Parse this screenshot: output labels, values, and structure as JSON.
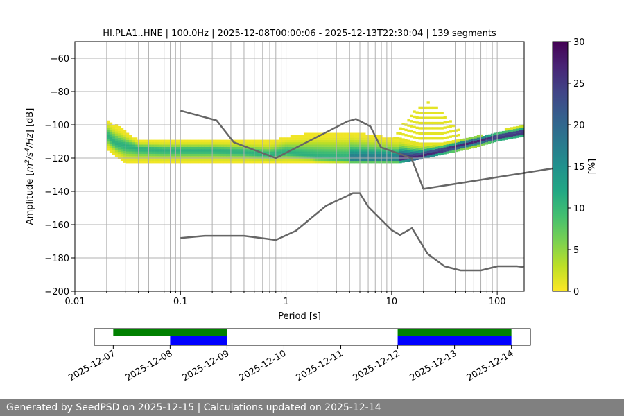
{
  "chart_data": [
    {
      "type": "heatmap",
      "title": "HI.PLA1..HNE | 100.0Hz | 2025-12-08T00:00:06 - 2025-12-13T22:30:04 | 139 segments",
      "xlabel": "Period [s]",
      "ylabel": "Amplitude [$m^2/s^4/Hz$] [dB]",
      "xscale": "log",
      "xlim": [
        0.01,
        180
      ],
      "ylim": [
        -200,
        -50
      ],
      "xticks": [
        0.01,
        0.1,
        1,
        10,
        100
      ],
      "xticklabels": [
        "0.01",
        "0.1",
        "1",
        "10",
        "100"
      ],
      "yticks": [
        -200,
        -180,
        -160,
        -140,
        -120,
        -100,
        -80,
        -60
      ],
      "yticklabels": [
        "−200",
        "−180",
        "−160",
        "−140",
        "−120",
        "−100",
        "−80",
        "−60"
      ],
      "grid": true,
      "colorbar": {
        "label": "[%]",
        "range": [
          0,
          30
        ],
        "ticks": [
          0,
          5,
          10,
          15,
          20,
          25,
          30
        ],
        "colormap": "viridis_r"
      },
      "noise_models": [
        {
          "name": "high",
          "color": "#666666",
          "x": [
            0.1,
            0.22,
            0.32,
            0.8,
            3.8,
            4.6,
            6.3,
            7.9,
            15.4,
            20,
            354.8
          ],
          "y": [
            -91.5,
            -97.4,
            -110.5,
            -120,
            -98,
            -96.5,
            -101,
            -113.5,
            -120,
            -138.5,
            -126
          ]
        },
        {
          "name": "low",
          "color": "#666666",
          "x": [
            0.1,
            0.17,
            0.4,
            0.8,
            1.24,
            2.4,
            4.3,
            5.0,
            6.0,
            10.0,
            12.0,
            15.6,
            21.9,
            31.6,
            45,
            70,
            101,
            154,
            178
          ],
          "y": [
            -168,
            -166.7,
            -166.7,
            -169.2,
            -163.7,
            -148.6,
            -141.1,
            -141.1,
            -149.2,
            -163.3,
            -166.2,
            -162.1,
            -177.5,
            -185,
            -187.5,
            -187.5,
            -185,
            -185,
            -185.5
          ]
        }
      ],
      "psd_bands": [
        {
          "name": "core",
          "x": [
            0.02,
            0.025,
            0.04,
            0.07,
            0.1,
            0.2,
            0.4,
            0.7,
            1.0,
            2.0,
            4.0,
            7.0,
            12.0,
            18.0,
            30.0,
            60.0,
            100.0,
            180.0
          ],
          "y": [
            -107,
            -112,
            -115,
            -116,
            -116,
            -116,
            -117,
            -119,
            -117,
            -120,
            -121,
            -121,
            -121,
            -120,
            -116,
            -111,
            -108,
            -105
          ]
        },
        {
          "name": "upper",
          "x": [
            0.02,
            0.04,
            0.1,
            0.3,
            0.7,
            1.0,
            2.0,
            4.0,
            7.0,
            12.0,
            18.0,
            30.0,
            60.0,
            100.0,
            180.0
          ],
          "y": [
            -97,
            -110,
            -110,
            -110,
            -110,
            -108,
            -105,
            -105,
            -107,
            -109,
            -112,
            -112,
            -108,
            -105,
            -100
          ]
        },
        {
          "name": "lower",
          "x": [
            0.02,
            0.03,
            0.1,
            0.3,
            0.7,
            1.0,
            2.0,
            4.0,
            7.0,
            12.0,
            18.0,
            30.0,
            60.0,
            100.0,
            180.0
          ],
          "y": [
            -115,
            -123,
            -123,
            -123,
            -123,
            -123,
            -123,
            -123,
            -123,
            -123,
            -121,
            -118,
            -114,
            -110,
            -107
          ]
        },
        {
          "name": "peak",
          "x": [
            10.0,
            15.0,
            20.0,
            23.0,
            30.0,
            45.0
          ],
          "y": [
            -110,
            -94,
            -88,
            -87,
            -93,
            -104
          ]
        }
      ]
    },
    {
      "type": "timeline",
      "xlim": [
        "2025-12-06T16:00",
        "2025-12-14T08:00"
      ],
      "xticklabels": [
        "2025-12-07",
        "2025-12-08",
        "2025-12-09",
        "2025-12-10",
        "2025-12-11",
        "2025-12-12",
        "2025-12-13",
        "2025-12-14"
      ],
      "data_available": [
        {
          "start": "2025-12-07",
          "end": "2025-12-09",
          "color": "#008000"
        },
        {
          "start": "2025-12-12",
          "end": "2025-12-14",
          "color": "#008000"
        }
      ],
      "data_used": [
        {
          "start": "2025-12-08",
          "end": "2025-12-09",
          "color": "#0000ff"
        },
        {
          "start": "2025-12-12",
          "end": "2025-12-14",
          "color": "#0000ff"
        }
      ]
    }
  ],
  "footer": {
    "text": "Generated by SeedPSD on 2025-12-15 | Calculations updated on 2025-12-14"
  }
}
